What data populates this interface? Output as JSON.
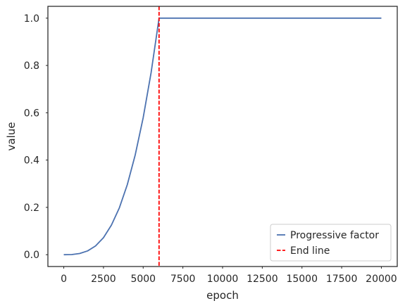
{
  "chart_data": {
    "type": "line",
    "xlabel": "epoch",
    "ylabel": "value",
    "xlim": [
      -1000,
      21000
    ],
    "ylim": [
      -0.05,
      1.05
    ],
    "xticks": [
      0,
      2500,
      5000,
      7500,
      10000,
      12500,
      15000,
      17500,
      20000
    ],
    "yticks": [
      0.0,
      0.2,
      0.4,
      0.6,
      0.8,
      1.0
    ],
    "xtick_labels": [
      "0",
      "2500",
      "5000",
      "7500",
      "10000",
      "12500",
      "15000",
      "17500",
      "20000"
    ],
    "ytick_labels": [
      "0.0",
      "0.2",
      "0.4",
      "0.6",
      "0.8",
      "1.0"
    ],
    "grid": false,
    "legend_position": "bottom-right",
    "series": [
      {
        "name": "Progressive factor",
        "color": "#4c72b0",
        "style": "solid",
        "x": [
          0,
          500,
          1000,
          1500,
          2000,
          2500,
          3000,
          3500,
          4000,
          4500,
          5000,
          5500,
          6000,
          8000,
          10000,
          12000,
          14000,
          16000,
          18000,
          20000
        ],
        "y": [
          0.0,
          0.0006,
          0.005,
          0.016,
          0.037,
          0.072,
          0.125,
          0.198,
          0.296,
          0.422,
          0.579,
          0.77,
          1.0,
          1.0,
          1.0,
          1.0,
          1.0,
          1.0,
          1.0,
          1.0
        ]
      },
      {
        "name": "End line",
        "color": "#ff0000",
        "style": "dashed",
        "vline_x": 6000
      }
    ]
  }
}
